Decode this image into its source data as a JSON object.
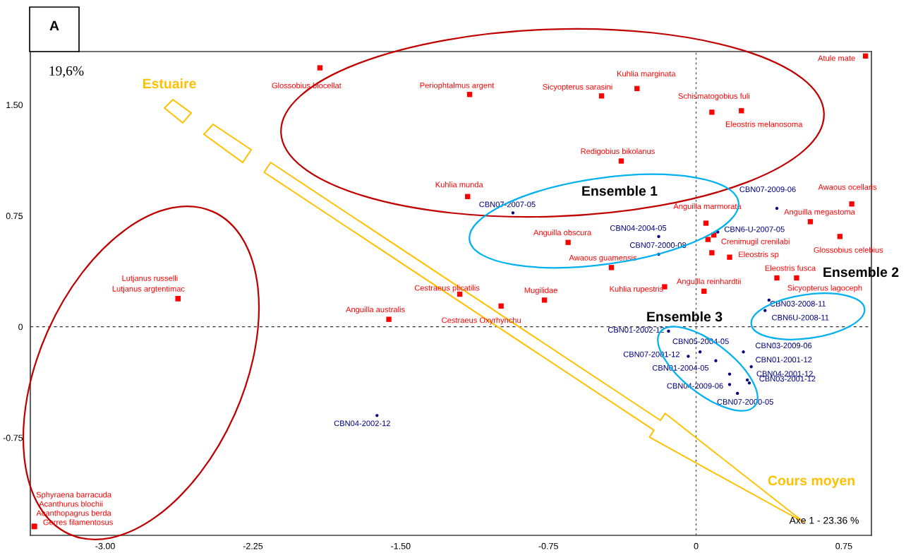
{
  "chart_data": {
    "type": "scatter",
    "xlim": [
      -3.38,
      0.89
    ],
    "ylim": [
      -1.41,
      1.86
    ],
    "xticks": [
      {
        "value": -3.0,
        "label": "-3.00"
      },
      {
        "value": -2.25,
        "label": "-2.25"
      },
      {
        "value": -1.5,
        "label": "-1.50"
      },
      {
        "value": -0.75,
        "label": "-0.75"
      },
      0,
      0.75
    ],
    "yticks": [
      {
        "value": -0.75,
        "label": "-0.75"
      },
      0,
      0.75,
      {
        "value": 1.5,
        "label": "1.50"
      }
    ],
    "grid": false,
    "legend": false,
    "ref_lines": [
      {
        "axis": "x",
        "value": 0,
        "color": "#555555",
        "line_style": "dotted"
      },
      {
        "axis": "y",
        "value": 0,
        "color": "#333333",
        "line_style": "dashed"
      }
    ],
    "annotations": [
      "A",
      "19,6%",
      "Estuaire",
      "Ensemble 1",
      "Ensemble 2",
      "Ensemble 3",
      "Cours moyen",
      "Axe 1 - 23.36 %"
    ],
    "series": [
      {
        "color": "#ff0000",
        "marker": "square",
        "x": [
          0.86,
          -1.91,
          -1.15,
          -0.48,
          -0.3,
          0.08,
          0.23,
          -0.38,
          -1.16,
          0.79,
          0.05,
          0.58,
          0.73,
          0.09,
          0.17,
          -0.65,
          -0.43,
          -0.16,
          0.04,
          0.41,
          0.51,
          -1.2,
          -0.99,
          -0.77,
          -1.56,
          -2.63,
          -2.63,
          -3.36,
          -3.36,
          -3.36,
          -3.36,
          0.06,
          0.08
        ],
        "values": [
          1.83,
          1.75,
          1.57,
          1.56,
          1.61,
          1.45,
          1.46,
          1.12,
          0.88,
          0.83,
          0.7,
          0.71,
          0.61,
          0.62,
          0.47,
          0.57,
          0.4,
          0.27,
          0.24,
          0.33,
          0.33,
          0.22,
          0.14,
          0.18,
          0.05,
          0.19,
          0.19,
          -1.35,
          -1.35,
          -1.35,
          -1.35,
          0.59,
          0.5
        ],
        "value_labels": [
          "Atule mate",
          "Glossobius biocellat",
          "Periophtalmus argent",
          "Sicyopterus sarasini",
          "Kuhlia marginata",
          "Schismatogobius fuli",
          "Eleostris melanosoma",
          "Redigobius bikolanus",
          "Kuhlia munda",
          "Awaous ocellaris",
          "Anguilla marmorata",
          "Anguilla megastoma",
          "Glossobius celebius",
          "Crenimugil crenilabi",
          "Eleostris sp",
          "Anguilla obscura",
          "Awaous guamensis",
          "Kuhlia rupestris",
          "Anguilla reinhardtii",
          "Eleostris fusca",
          "Sicyopterus lagoceph",
          "Cestraeus plicatilis",
          "Cestraeus Oxyrhynchu",
          "Mugilidae",
          "Anguilla australis",
          "Lutjanus russelli",
          "Lutjanus argtentimac",
          "Sphyraena barracuda",
          "Acanthurus blochii",
          "Acanthopagrus berda",
          "Gerres filamentosus",
          null,
          null
        ]
      },
      {
        "color": "#000080",
        "marker": "circle",
        "x": [
          -0.93,
          0.41,
          -0.19,
          0.11,
          -0.19,
          0.37,
          0.35,
          -0.14,
          0.02,
          -0.04,
          0.1,
          0.24,
          0.28,
          0.26,
          0.27,
          0.17,
          0.21,
          -1.62,
          0.17
        ],
        "values": [
          0.77,
          0.8,
          0.61,
          0.64,
          0.49,
          0.18,
          0.11,
          -0.03,
          -0.17,
          -0.2,
          -0.23,
          -0.17,
          -0.27,
          -0.36,
          -0.38,
          -0.39,
          -0.45,
          -0.6,
          -0.32
        ],
        "value_labels": [
          "CBN07-2007-05",
          "CBN07-2009-06",
          "CBN04-2004-05",
          "CBN6-U-2007-05",
          "CBN07-2000-08",
          "CBN03-2008-11",
          "CBN6U-2008-11",
          "CBN01-2002-12",
          "CBN05-2004-05",
          "CBN07-2001-12",
          "CBN01-2004-05",
          "CBN03-2009-06",
          "CBN01-2001-12",
          "CBN04-2001-12",
          "CBN03-2001-12",
          "CBN04-2009-06",
          "CBN07-2000-05",
          "CBN04-2002-12",
          null
        ]
      }
    ]
  }
}
